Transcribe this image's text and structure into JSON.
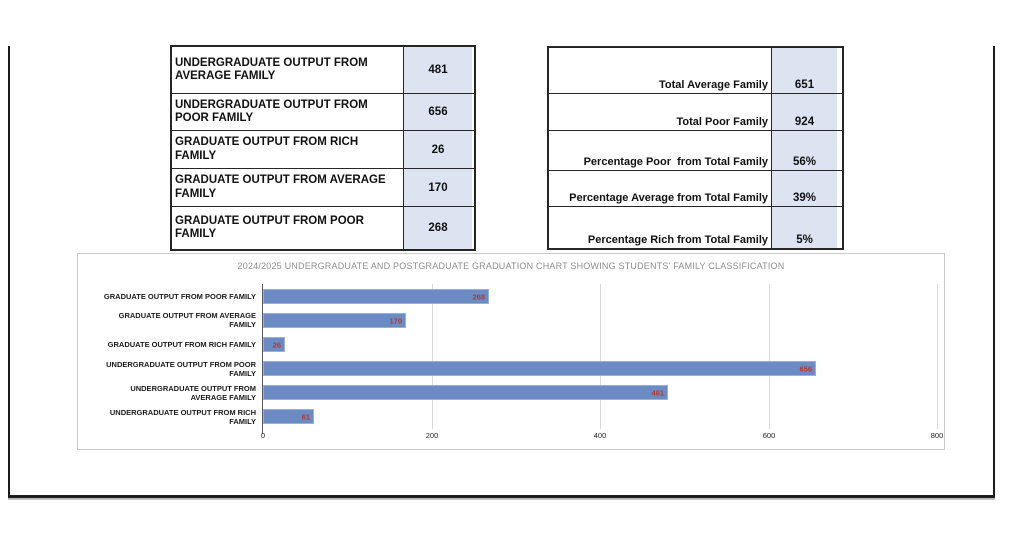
{
  "left_table": {
    "rows": [
      {
        "label": "UNDERGRADUATE OUTPUT FROM AVERAGE FAMILY",
        "value": "481"
      },
      {
        "label": "UNDERGRADUATE OUTPUT FROM POOR FAMILY",
        "value": "656"
      },
      {
        "label": "GRADUATE OUTPUT FROM RICH FAMILY",
        "value": "26"
      },
      {
        "label": "GRADUATE OUTPUT FROM AVERAGE FAMILY",
        "value": "170"
      },
      {
        "label": "GRADUATE OUTPUT FROM POOR FAMILY",
        "value": "268"
      }
    ]
  },
  "right_table": {
    "rows": [
      {
        "label": "Total Average Family",
        "value": "651"
      },
      {
        "label": "Total Poor Family",
        "value": "924"
      },
      {
        "label": "Percentage Poor  from Total Family",
        "value": "56%"
      },
      {
        "label": "Percentage Average from Total Family",
        "value": "39%"
      },
      {
        "label": "Percentage Rich from Total Family",
        "value": "5%"
      }
    ]
  },
  "chart_data": {
    "type": "bar",
    "orientation": "horizontal",
    "title": "2024/2025 UNDERGRADUATE AND POSTGRADUATE GRADUATION CHART SHOWING STUDENTS' FAMILY CLASSIFICATION",
    "categories": [
      "GRADUATE OUTPUT FROM POOR FAMILY",
      "GRADUATE OUTPUT FROM AVERAGE FAMILY",
      "GRADUATE OUTPUT FROM RICH FAMILY",
      "UNDERGRADUATE OUTPUT FROM POOR FAMILY",
      "UNDERGRADUATE OUTPUT FROM AVERAGE FAMILY",
      "UNDERGRADUATE OUTPUT FROM RICH FAMILY"
    ],
    "categories_display": [
      "GRADUATE OUTPUT FROM POOR FAMILY",
      "GRADUATE OUTPUT FROM AVERAGE\nFAMILY",
      "GRADUATE OUTPUT FROM RICH FAMILY",
      "UNDERGRADUATE OUTPUT FROM POOR\nFAMILY",
      "UNDERGRADUATE OUTPUT FROM\nAVERAGE FAMILY",
      "UNDERGRADUATE OUTPUT FROM RICH\nFAMILY"
    ],
    "values": [
      268,
      170,
      26,
      656,
      481,
      61
    ],
    "value_labels": [
      "268",
      "170",
      "26",
      "656",
      "481",
      "61"
    ],
    "xlabel": "",
    "ylabel": "",
    "xlim": [
      0,
      800
    ],
    "xticks": [
      0,
      200,
      400,
      600,
      800
    ],
    "grid": true,
    "legend": "none"
  },
  "colors": {
    "bar_fill": "#6d8bc3",
    "bar_edge": "#9bb0d8",
    "bar_value_label": "#b03a33",
    "table_value_cell_fill": "#dce3f1",
    "chart_title_text": "#8e8e8e",
    "gridline": "#d9d9d9",
    "table_border": "#262626"
  }
}
